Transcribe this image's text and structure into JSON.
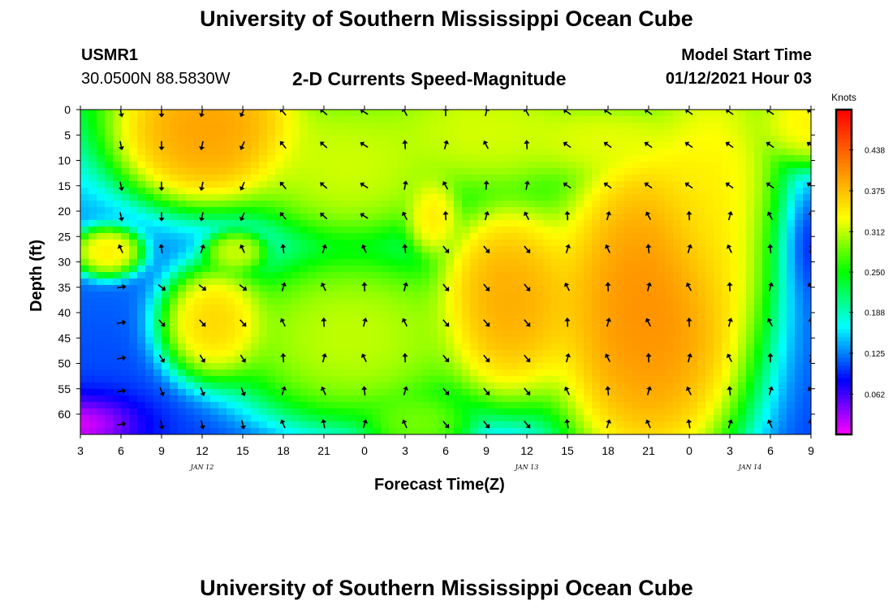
{
  "header": {
    "title_top": "University of Southern Mississippi Ocean Cube",
    "title_bottom": "University of Southern Mississippi Ocean Cube",
    "station_id": "USMR1",
    "station_coords": "30.0500N 88.5830W",
    "model_start_label": "Model Start Time",
    "model_start_value": "01/12/2021 Hour 03"
  },
  "chart_data": {
    "type": "heatmap",
    "title": "2-D Currents Speed-Magnitude",
    "xlabel": "Forecast Time(Z)",
    "ylabel": "Depth (ft)",
    "x_tick_labels": [
      "3",
      "6",
      "9",
      "12",
      "15",
      "18",
      "21",
      "0",
      "3",
      "6",
      "9",
      "12",
      "15",
      "18",
      "21",
      "0",
      "3",
      "6",
      "9"
    ],
    "x_hours": [
      0,
      3,
      6,
      9,
      12,
      15,
      18,
      21,
      24,
      27,
      30,
      33,
      36,
      39,
      42,
      45,
      48,
      51,
      54
    ],
    "x_range_hours": [
      0,
      54
    ],
    "date_labels": [
      {
        "label": "JAN 12",
        "hour": 9
      },
      {
        "label": "JAN 13",
        "hour": 33
      },
      {
        "label": "JAN 14",
        "hour": 49.5
      }
    ],
    "y_tick_labels": [
      "0",
      "5",
      "10",
      "15",
      "20",
      "25",
      "30",
      "35",
      "40",
      "45",
      "50",
      "55",
      "60"
    ],
    "y_values": [
      0,
      5,
      10,
      15,
      20,
      25,
      30,
      35,
      40,
      45,
      50,
      55,
      60
    ],
    "y_range": [
      0,
      64
    ],
    "y_inverted": true,
    "colorbar": {
      "unit": "Knots",
      "range": [
        0,
        0.5
      ],
      "tick_labels": [
        "0.438",
        "0.375",
        "0.312",
        "0.250",
        "0.188",
        "0.125",
        "0.062"
      ],
      "tick_values": [
        0.438,
        0.375,
        0.312,
        0.25,
        0.188,
        0.125,
        0.062
      ],
      "colors": [
        "#ff00ff",
        "#0000ff",
        "#00ffff",
        "#00ff00",
        "#ffff00",
        "#ff8000",
        "#ff0000"
      ]
    },
    "grid": false,
    "arrows": true
  }
}
